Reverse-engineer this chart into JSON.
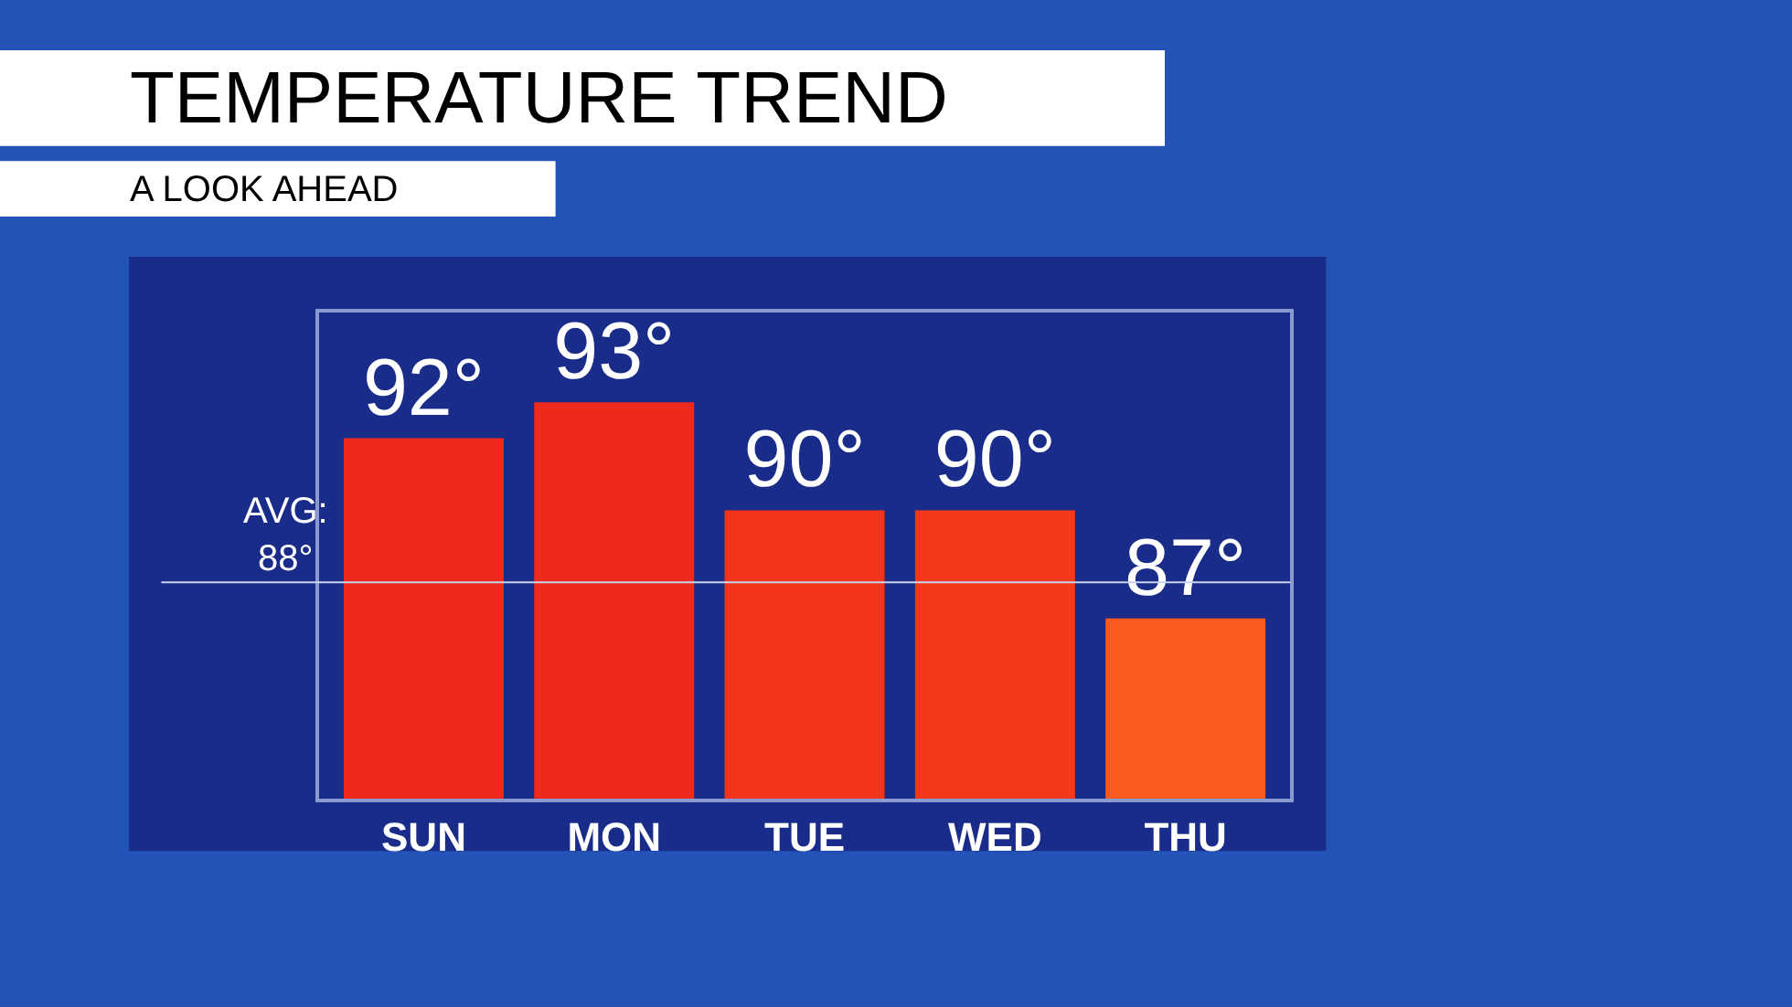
{
  "chart_data": {
    "type": "bar",
    "title": "TEMPERATURE TREND",
    "subtitle": "A LOOK AHEAD",
    "categories": [
      "SUN",
      "MON",
      "TUE",
      "WED",
      "THU"
    ],
    "values": [
      92,
      93,
      90,
      90,
      87
    ],
    "value_labels": [
      "92°",
      "93°",
      "90°",
      "90°",
      "87°"
    ],
    "colors": [
      "#ee2a1c",
      "#ee2a1c",
      "#f2341c",
      "#f4381c",
      "#fa5a1e"
    ],
    "ylim": [
      82,
      95.5
    ],
    "tick_labels": "x",
    "grid": false,
    "legend": false,
    "ref_lines": [
      {
        "axis": "y",
        "value": 88,
        "label": "AVG: 88°",
        "color": "#c8d4ee"
      }
    ]
  }
}
